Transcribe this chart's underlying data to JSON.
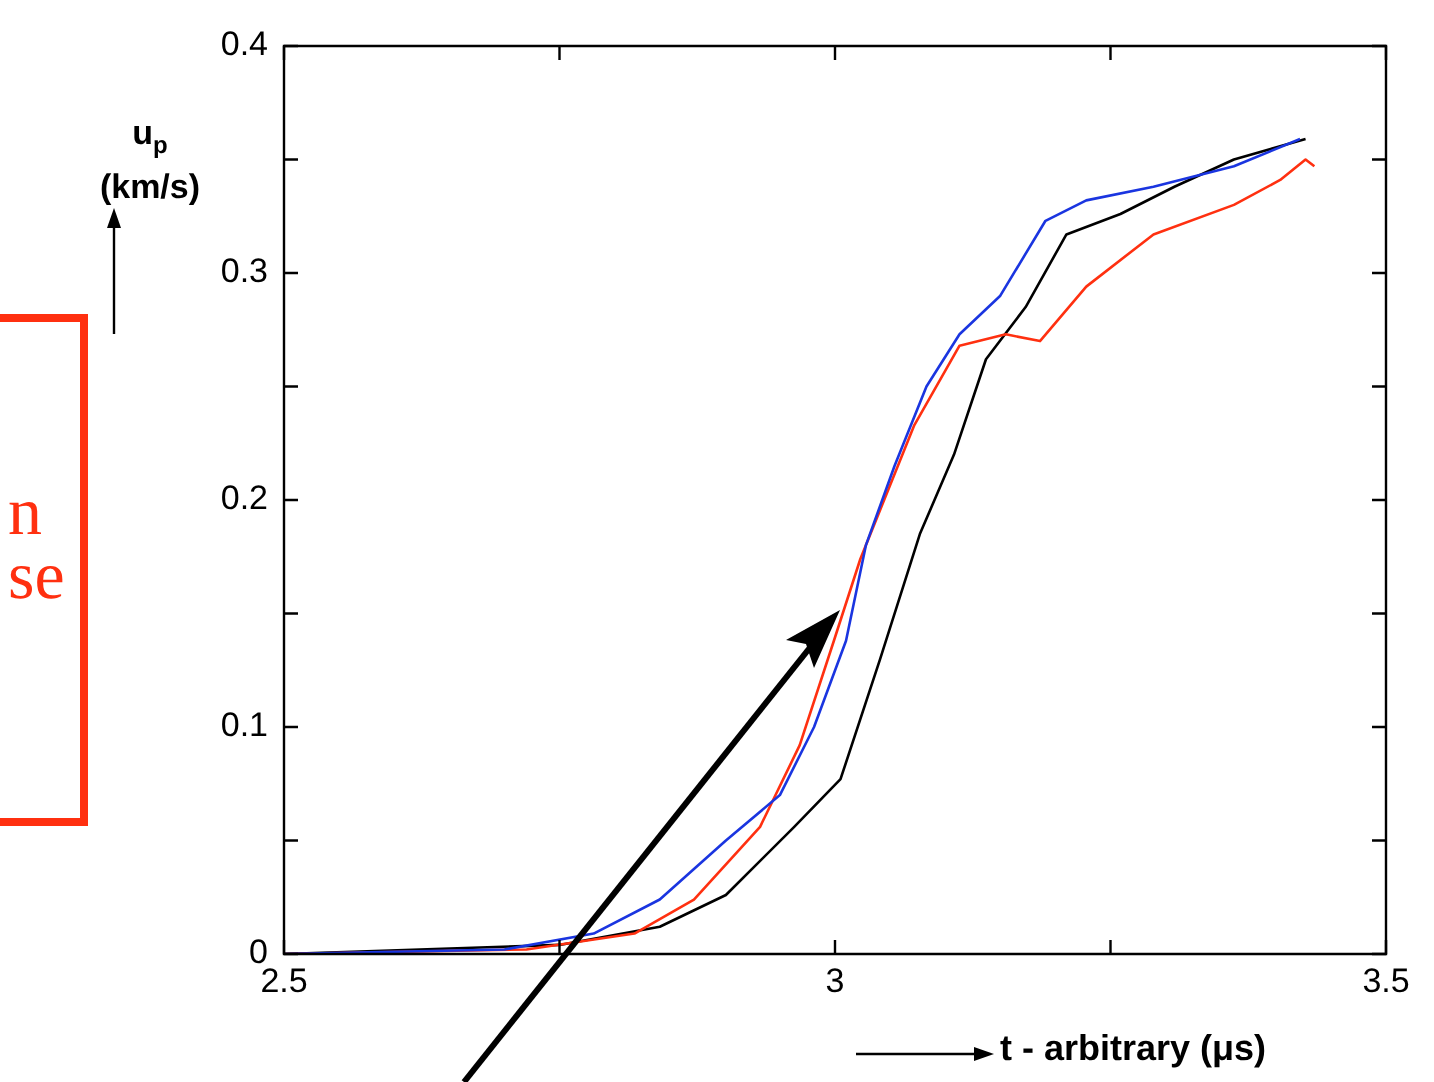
{
  "chart_data": {
    "type": "line",
    "xlabel": "t - arbitrary (μs)",
    "ylabel": "u$_{p}$ (km/s)",
    "annotations": [
      "n",
      "se"
    ],
    "xlim": [
      2.5,
      3.5
    ],
    "xticks": [
      2.5,
      {
        "value": 2.75,
        "label": null
      },
      3,
      {
        "value": 3.25,
        "label": null
      },
      3.5
    ],
    "ylim": [
      0,
      0.4
    ],
    "yticks": [
      0,
      {
        "value": 0.05,
        "label": null
      },
      0.1,
      {
        "value": 0.15,
        "label": null
      },
      0.2,
      {
        "value": 0.25,
        "label": null
      },
      0.3,
      {
        "value": 0.35,
        "label": null
      },
      0.4
    ],
    "grid": false,
    "legend": false,
    "marker": "none",
    "line_style": "solid",
    "series": [
      {
        "color": "#1a35e0",
        "x": [
          2.5,
          2.7,
          2.781,
          2.841,
          2.901,
          2.95,
          2.981,
          3.01,
          3.028,
          3.054,
          3.083,
          3.113,
          3.15,
          3.191,
          3.228,
          3.289,
          3.362,
          3.422
        ],
        "values": [
          0,
          0.002,
          0.009,
          0.024,
          0.05,
          0.07,
          0.1,
          0.138,
          0.18,
          0.215,
          0.25,
          0.273,
          0.29,
          0.323,
          0.332,
          0.338,
          0.347,
          0.359
        ]
      },
      {
        "color": "#ff3010",
        "x": [
          2.5,
          2.72,
          2.818,
          2.872,
          2.932,
          2.968,
          2.999,
          3.023,
          3.072,
          3.113,
          3.155,
          3.186,
          3.228,
          3.289,
          3.362,
          3.404,
          3.427,
          3.435
        ],
        "values": [
          0,
          0.002,
          0.009,
          0.024,
          0.056,
          0.092,
          0.138,
          0.174,
          0.233,
          0.268,
          0.273,
          0.27,
          0.294,
          0.317,
          0.33,
          0.341,
          0.35,
          0.347
        ]
      },
      {
        "color": "#000000",
        "x": [
          2.5,
          2.75,
          2.841,
          2.901,
          2.963,
          3.005,
          3.041,
          3.077,
          3.108,
          3.137,
          3.173,
          3.21,
          3.259,
          3.308,
          3.362,
          3.427
        ],
        "values": [
          0,
          0.004,
          0.012,
          0.026,
          0.056,
          0.077,
          0.13,
          0.185,
          0.22,
          0.262,
          0.285,
          0.317,
          0.326,
          0.338,
          0.35,
          0.359
        ]
      }
    ]
  }
}
